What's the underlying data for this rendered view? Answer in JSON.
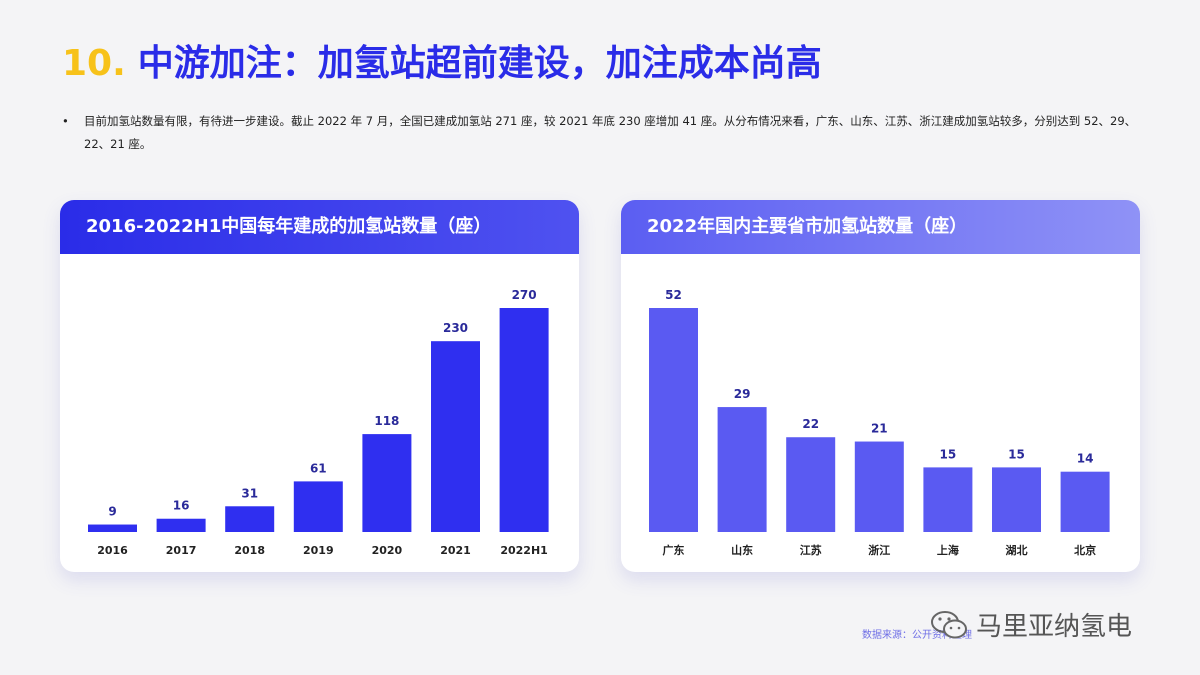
{
  "header": {
    "number": "10.",
    "title": "中游加注：加氢站超前建设，加注成本尚高"
  },
  "bullet": {
    "text": "目前加氢站数量有限，有待进一步建设。截止 2022 年 7 月，全国已建成加氢站 271 座，较 2021 年底 230 座增加 41 座。从分布情况来看，广东、山东、江苏、浙江建成加氢站较多，分别达到 52、29、22、21 座。"
  },
  "chart_data": [
    {
      "type": "bar",
      "title": "2016-2022H1中国每年建成的加氢站数量（座）",
      "categories": [
        "2016",
        "2017",
        "2018",
        "2019",
        "2020",
        "2021",
        "2022H1"
      ],
      "values": [
        9,
        16,
        31,
        61,
        118,
        230,
        270
      ],
      "ylim": [
        0,
        270
      ],
      "grid": false,
      "bar_color": "#2f2ff0"
    },
    {
      "type": "bar",
      "title": "2022年国内主要省市加氢站数量（座）",
      "categories": [
        "广东",
        "山东",
        "江苏",
        "浙江",
        "上海",
        "湖北",
        "北京"
      ],
      "values": [
        52,
        29,
        22,
        21,
        15,
        15,
        14
      ],
      "ylim": [
        0,
        52
      ],
      "grid": false,
      "bar_color": "#5a5af2"
    }
  ],
  "footer": {
    "source": "数据来源：公开资料整理",
    "watermark": "马里亚纳氢电"
  }
}
